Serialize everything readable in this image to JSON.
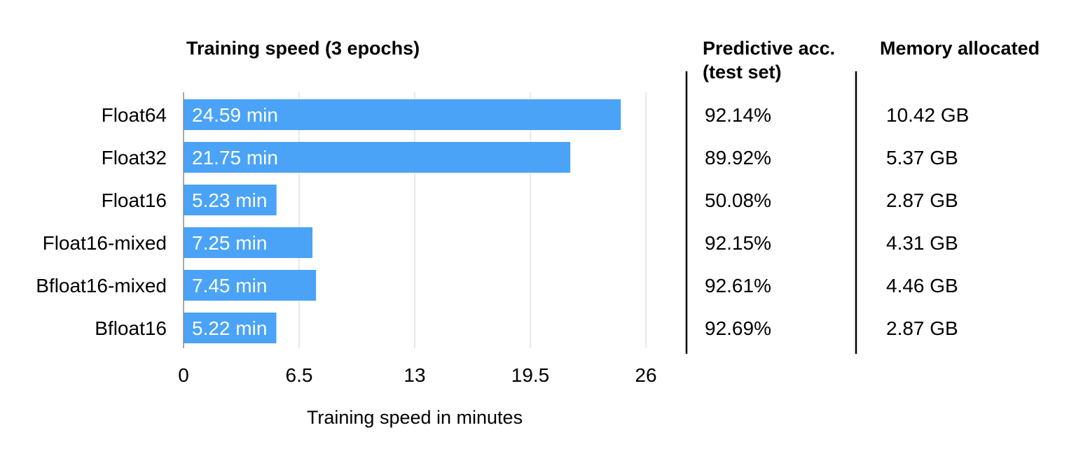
{
  "chart_data": {
    "type": "bar",
    "orientation": "horizontal",
    "title": "Training speed (3 epochs)",
    "xlabel": "Training speed in minutes",
    "ylabel": "",
    "categories": [
      "Float64",
      "Float32",
      "Float16",
      "Float16-mixed",
      "Bfloat16-mixed",
      "Bfloat16"
    ],
    "values": [
      24.59,
      21.75,
      5.23,
      7.25,
      7.45,
      5.22
    ],
    "value_labels": [
      "24.59 min",
      "21.75 min",
      "5.23 min",
      "7.25 min",
      "7.45 min",
      "5.22 min"
    ],
    "xlim": [
      0,
      26
    ],
    "xticks": [
      0,
      6.5,
      13,
      19.5,
      26
    ],
    "xtick_labels": [
      "0",
      "6.5",
      "13",
      "19.5",
      "26"
    ],
    "grid": true,
    "bar_color": "#4aa3f7",
    "grid_color": "#d9d9d9"
  },
  "side_table": {
    "columns": [
      {
        "header_lines": [
          "Predictive acc.",
          "(test set)"
        ],
        "values": [
          "92.14%",
          "89.92%",
          "50.08%",
          "92.15%",
          "92.61%",
          "92.69%"
        ]
      },
      {
        "header_lines": [
          "Memory allocated"
        ],
        "values": [
          "10.42 GB",
          "5.37 GB",
          "2.87 GB",
          "4.31 GB",
          "4.46 GB",
          "2.87 GB"
        ]
      }
    ]
  }
}
